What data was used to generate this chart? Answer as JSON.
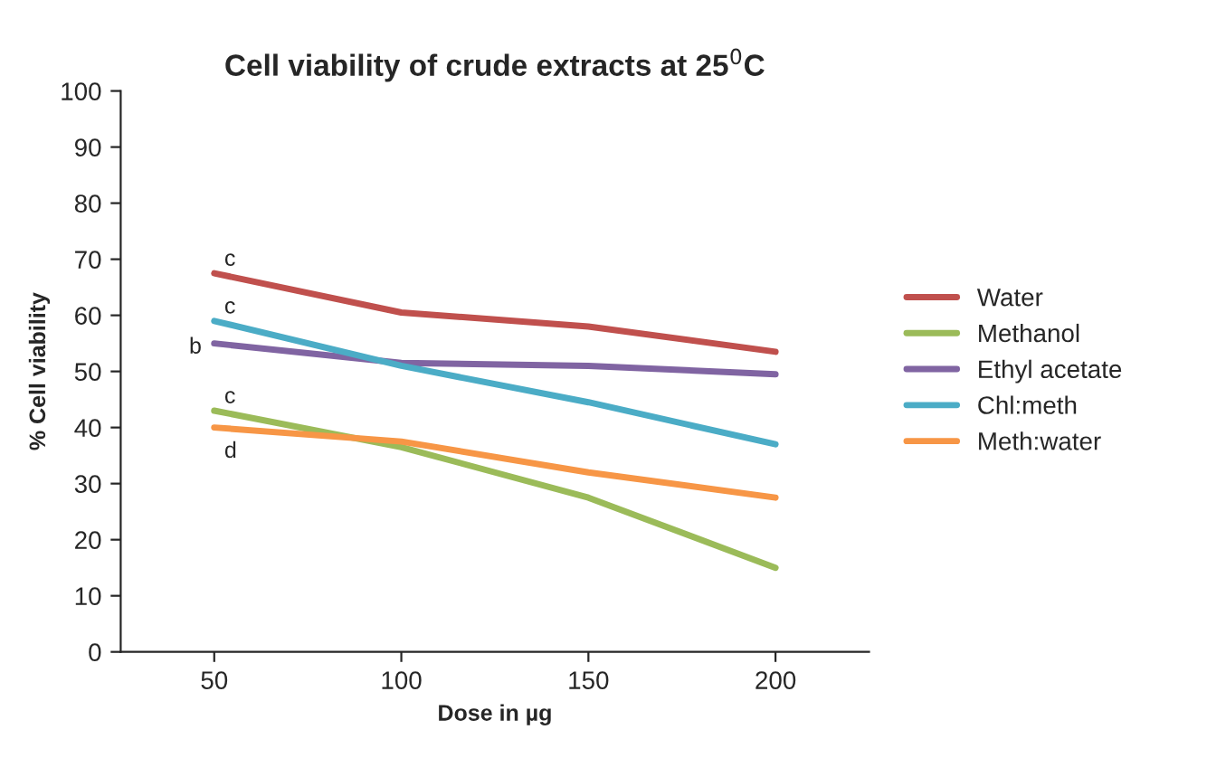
{
  "chart_data": {
    "type": "line",
    "title": "Cell viability of crude extracts at 25$^{0}$C",
    "xlabel": "Dose in µg",
    "ylabel": "% Cell viability",
    "categories": [
      "50",
      "100",
      "150",
      "200"
    ],
    "series": [
      {
        "name": "Water",
        "color": "#c0504d",
        "values": [
          67.5,
          60.5,
          58,
          53.5
        ]
      },
      {
        "name": "Methanol",
        "color": "#9bbb59",
        "values": [
          43,
          36.5,
          27.5,
          15
        ]
      },
      {
        "name": "Ethyl acetate",
        "color": "#8064a2",
        "values": [
          55,
          51.5,
          51,
          49.5
        ]
      },
      {
        "name": "Chl:meth",
        "color": "#4bacc6",
        "values": [
          59,
          51,
          44.5,
          37
        ]
      },
      {
        "name": "Meth:water",
        "color": "#f79646",
        "values": [
          40,
          37.5,
          32,
          27.5
        ]
      }
    ],
    "annotations": [
      {
        "text": "c",
        "x": "50",
        "y": 67.5
      },
      {
        "text": "c",
        "x": "50",
        "y": 59
      },
      {
        "text": "b",
        "x": "50",
        "y": 55
      },
      {
        "text": "c",
        "x": "50",
        "y": 43
      },
      {
        "text": "d",
        "x": "50",
        "y": 40
      }
    ],
    "ylim": [
      0,
      100
    ],
    "yticks": [
      0,
      10,
      20,
      30,
      40,
      50,
      60,
      70,
      80,
      90,
      100
    ],
    "grid": false,
    "legend": "right",
    "marker": "none",
    "line_style": "solid"
  }
}
